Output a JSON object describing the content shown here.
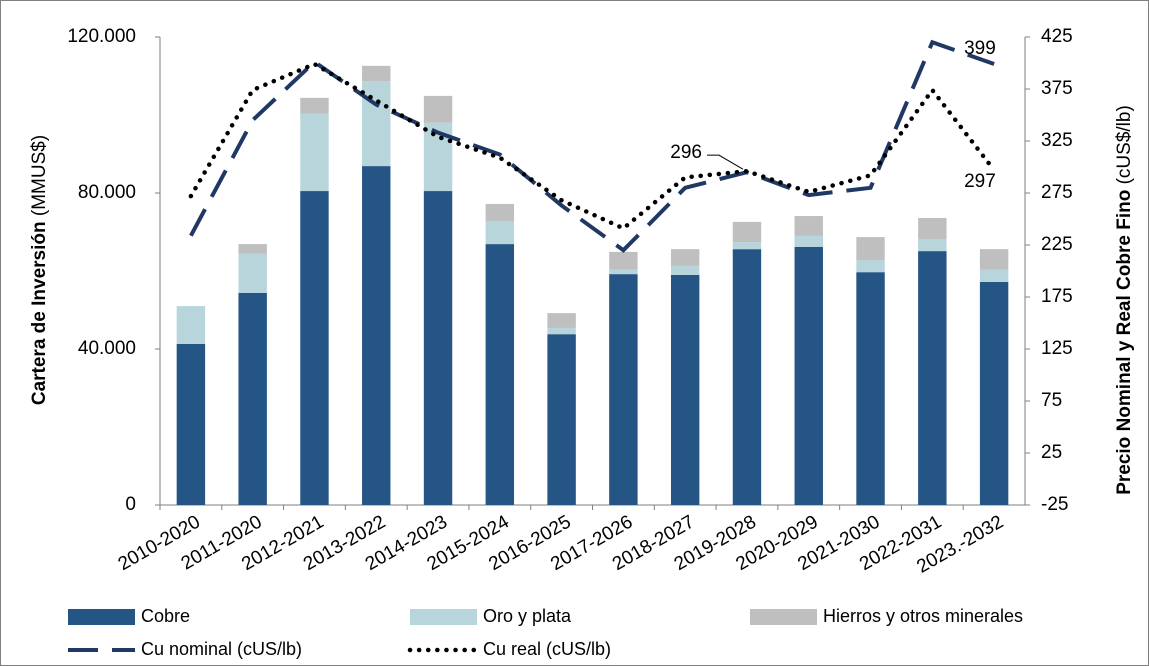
{
  "chart_data": {
    "type": "bar",
    "stacked": true,
    "categories": [
      "2010-2020",
      "2011-2020",
      "2012-2021",
      "2013-2022",
      "2014-2023",
      "2015-2024",
      "2016-2025",
      "2017-2026",
      "2018-2027",
      "2019-2028",
      "2020-2029",
      "2021-2030",
      "2022-2031",
      "2023.-2032"
    ],
    "series": [
      {
        "name": "Cobre",
        "color": "#255584",
        "values": [
          41.3,
          54.4,
          80.5,
          86.9,
          80.5,
          66.9,
          43.8,
          59.2,
          59.0,
          65.6,
          66.2,
          59.7,
          65.1,
          57.2
        ]
      },
      {
        "name": "Oro y plata",
        "color": "#b8d5dc",
        "values": [
          9.7,
          10.0,
          19.8,
          21.8,
          17.5,
          5.9,
          1.6,
          1.1,
          2.3,
          1.8,
          2.8,
          3.1,
          3.1,
          3.1
        ]
      },
      {
        "name": "Hierros y otros minerales",
        "color": "#bfbfbf",
        "values": [
          0,
          2.5,
          4.1,
          3.9,
          6.9,
          4.4,
          3.8,
          4.6,
          4.3,
          5.2,
          5.1,
          5.9,
          5.4,
          5.3
        ]
      },
      {
        "name": "Cu nominal (cUS/lb)",
        "type": "line",
        "axis": "y2",
        "style": "dashed",
        "color": "#1f3864",
        "values": [
          234,
          345,
          401,
          360,
          333,
          312,
          263,
          220,
          280,
          295,
          273,
          280,
          420,
          399
        ],
        "value_labels": [
          null,
          null,
          null,
          null,
          null,
          null,
          null,
          null,
          null,
          null,
          null,
          null,
          null,
          "399"
        ]
      },
      {
        "name": "Cu real (cUS/lb)",
        "type": "line",
        "axis": "y2",
        "style": "dotted",
        "color": "#000000",
        "values": [
          272,
          374,
          399,
          364,
          329,
          309,
          268,
          241,
          290,
          296,
          276,
          292,
          374,
          297
        ],
        "value_labels": [
          null,
          null,
          null,
          null,
          null,
          null,
          null,
          null,
          null,
          "296",
          null,
          null,
          null,
          "297"
        ]
      }
    ],
    "y_label": {
      "main": "Cartera de Inversión",
      "unit": "(MMUS$)"
    },
    "y2_label": {
      "main": "Precio Nominal y Real Cobre Fino",
      "unit": "(cUS$/lb)"
    },
    "ylim": [
      0,
      120
    ],
    "yticks": [
      {
        "value": 0,
        "label": "0"
      },
      {
        "value": 40,
        "label": "40.000"
      },
      {
        "value": 80,
        "label": "80.000"
      },
      {
        "value": 120,
        "label": "120.000"
      }
    ],
    "y2lim": [
      -25,
      425
    ],
    "y2ticks": [
      -25,
      25,
      75,
      125,
      175,
      225,
      275,
      325,
      375,
      425
    ],
    "grid": false
  }
}
